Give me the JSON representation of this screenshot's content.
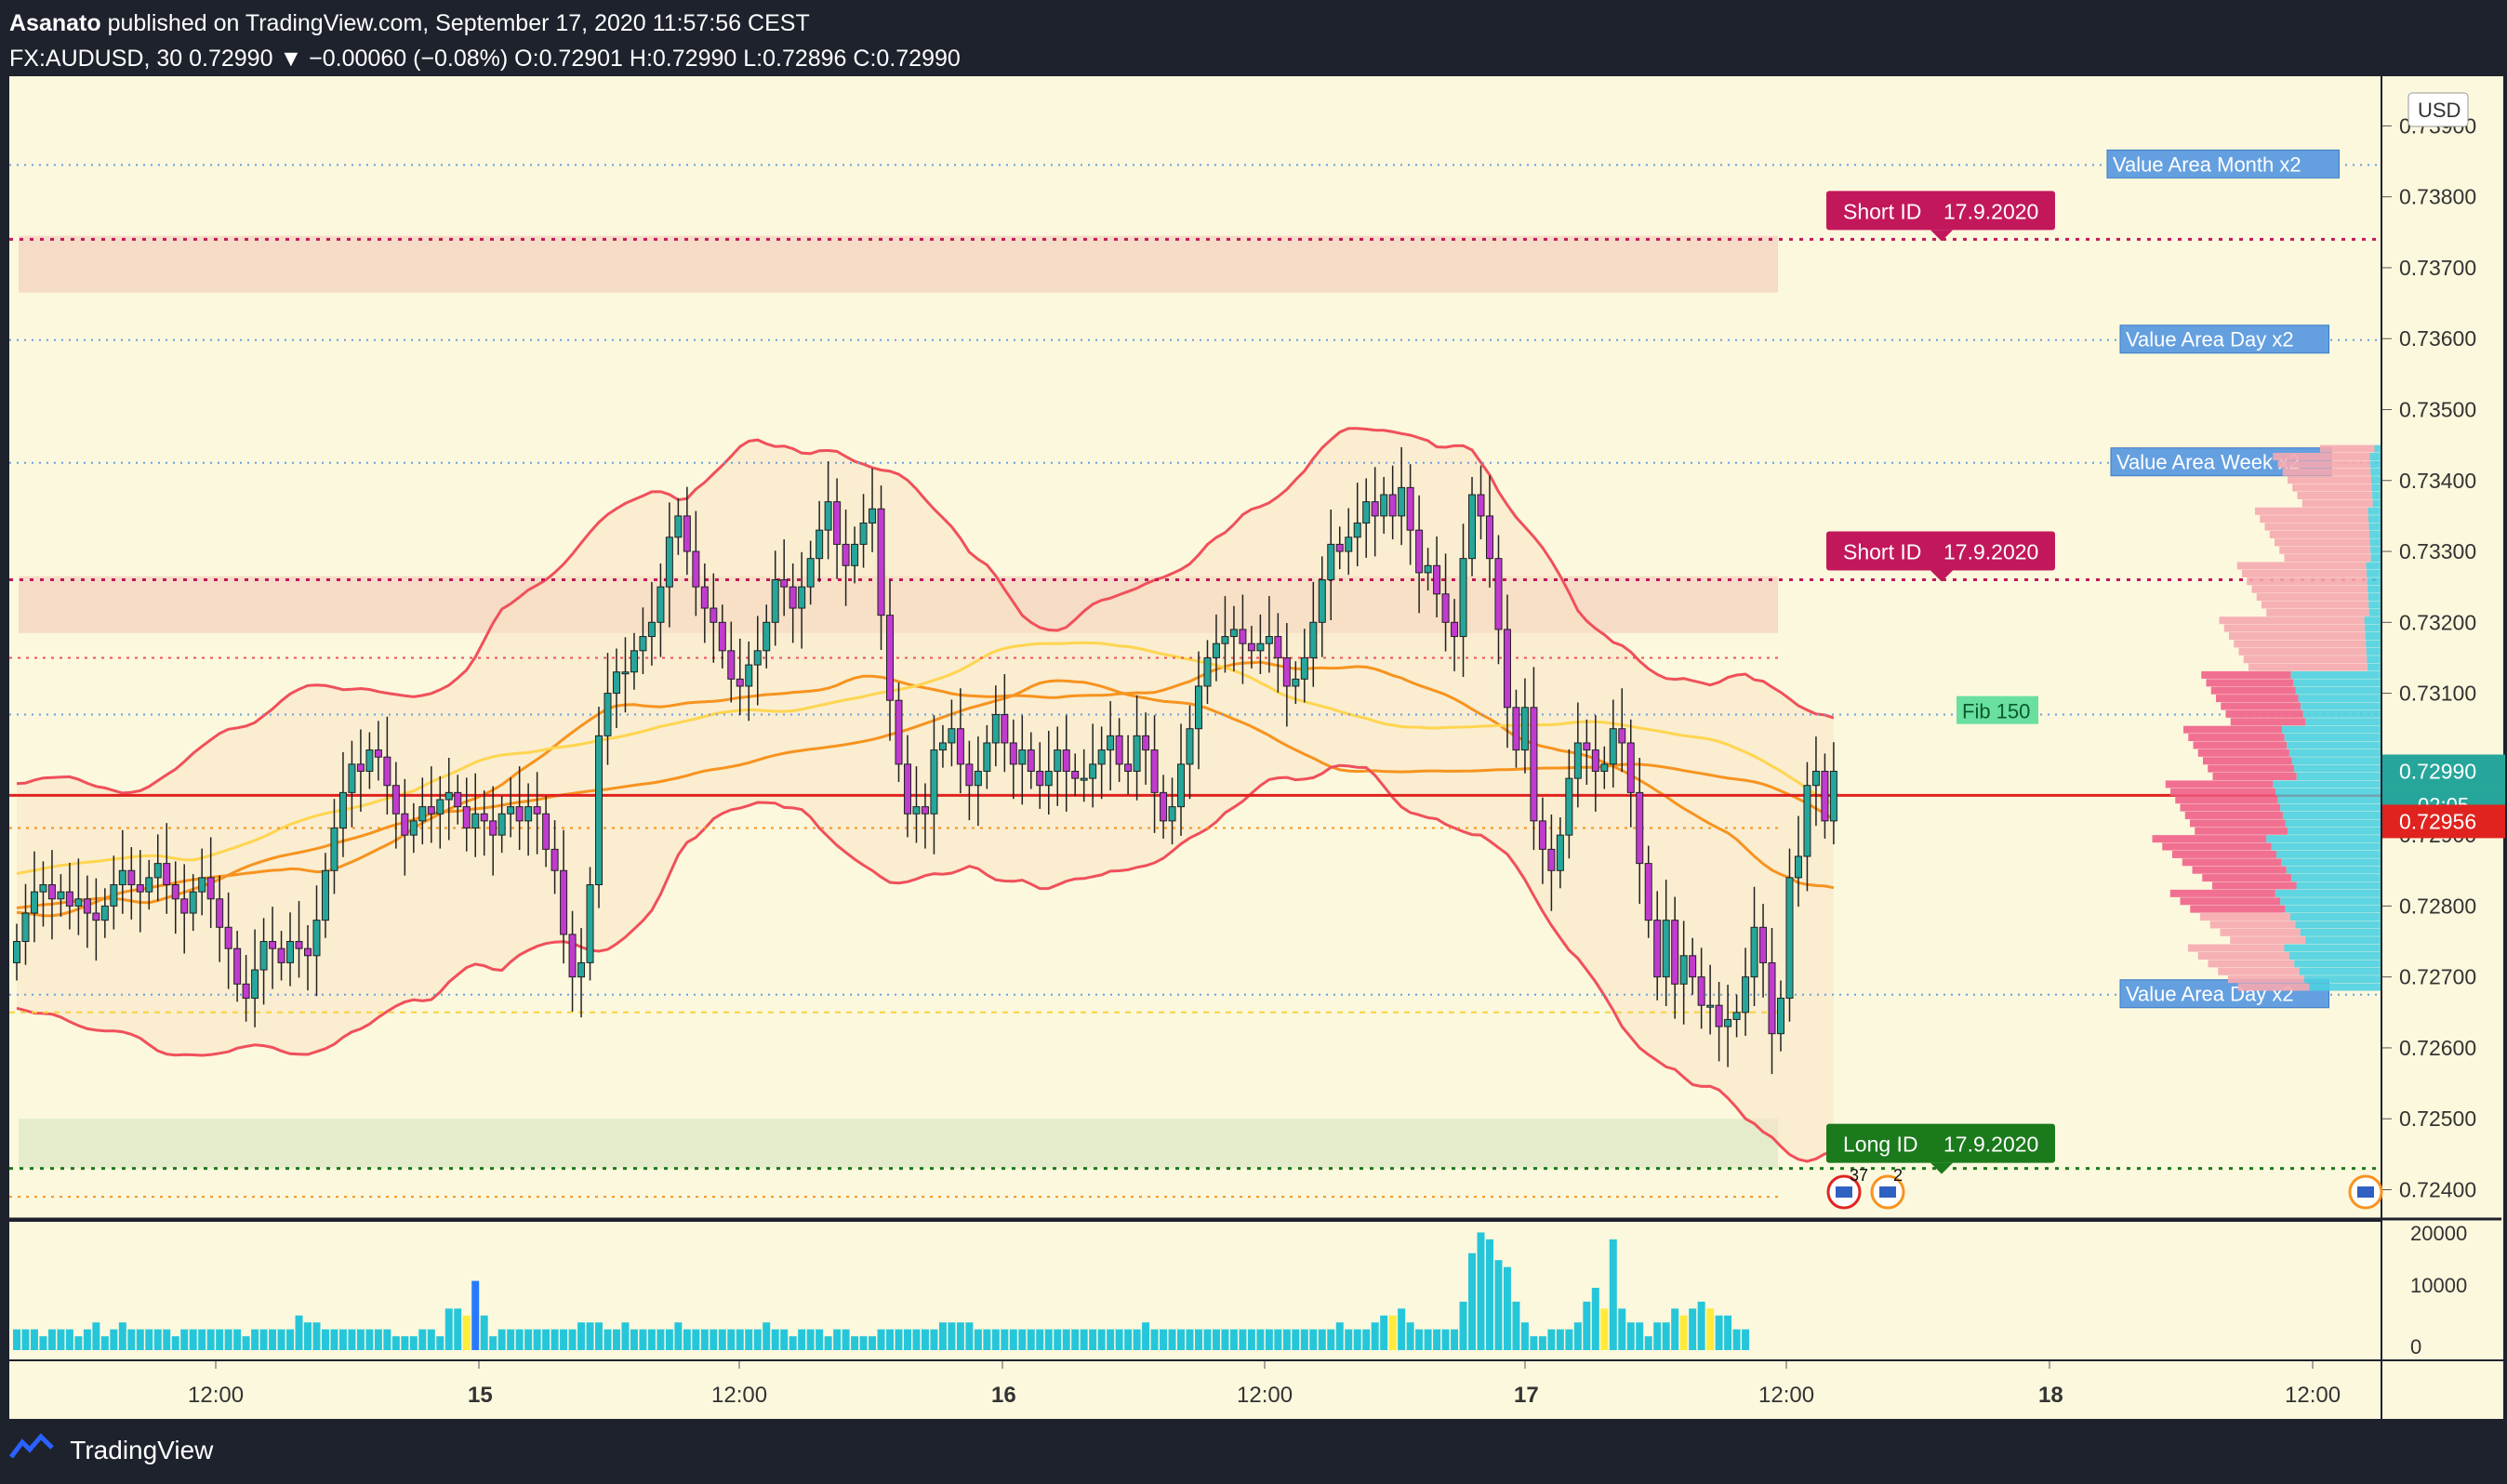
{
  "header": {
    "publisher": "Asanato",
    "published_text": "published on TradingView.com, September 17, 2020 11:57:56 CEST",
    "symbol": "FX:AUDUSD, 30",
    "last": "0.72990",
    "change": "−0.00060 (−0.08%)",
    "o_label": "O:",
    "o": "0.72901",
    "h_label": "H:",
    "h": "0.72990",
    "l_label": "L:",
    "l": "0.72896",
    "c_label": "C:",
    "c": "0.72990"
  },
  "footer": {
    "brand": "TradingView"
  },
  "colors": {
    "bg": "#fcf8dd",
    "frame": "#1e222d",
    "up": "#26a69a",
    "down": "#c2185b",
    "bb": "#f0505a",
    "ema": "#f7931e",
    "ma": "#ffd54f",
    "short": "#c2185b",
    "long": "#1b7a1b",
    "va_label": "#64a0e0",
    "fib": "#69e0a0",
    "price_line": "#e0231f"
  },
  "chart_data": {
    "type": "candlestick",
    "symbol": "FX:AUDUSD",
    "timeframe": "30",
    "currency": "USD",
    "ylim": [
      0.7236,
      0.7397
    ],
    "price_ticks": [
      "0.73900",
      "0.73800",
      "0.73700",
      "0.73600",
      "0.73500",
      "0.73400",
      "0.73300",
      "0.73200",
      "0.73100",
      "0.73000",
      "0.72900",
      "0.72800",
      "0.72700",
      "0.72600",
      "0.72500",
      "0.72400"
    ],
    "time_ticks": [
      "12:00",
      "15",
      "12:00",
      "16",
      "12:00",
      "17",
      "12:00",
      "18",
      "12:00"
    ],
    "volume_ticks": [
      "20000",
      "10000",
      "0"
    ],
    "last_price": "0.72990",
    "countdown": "02:05",
    "marker_price": "0.72956",
    "closes": [
      0.7275,
      0.7279,
      0.7282,
      0.7283,
      0.7281,
      0.7282,
      0.728,
      0.7281,
      0.7279,
      0.7278,
      0.728,
      0.7283,
      0.7285,
      0.7283,
      0.7282,
      0.7284,
      0.7286,
      0.7283,
      0.7281,
      0.7279,
      0.7282,
      0.7284,
      0.7281,
      0.7277,
      0.7274,
      0.7269,
      0.7267,
      0.7271,
      0.7275,
      0.7274,
      0.7272,
      0.7275,
      0.7274,
      0.7273,
      0.7278,
      0.7285,
      0.7291,
      0.7296,
      0.73,
      0.7299,
      0.7302,
      0.7301,
      0.7297,
      0.7293,
      0.729,
      0.7292,
      0.7294,
      0.7293,
      0.7295,
      0.7296,
      0.7294,
      0.7291,
      0.7293,
      0.7292,
      0.729,
      0.7293,
      0.7294,
      0.7292,
      0.7294,
      0.7293,
      0.7288,
      0.7285,
      0.7276,
      0.727,
      0.7272,
      0.7283,
      0.7304,
      0.731,
      0.7313,
      0.7313,
      0.7316,
      0.7318,
      0.732,
      0.7325,
      0.7332,
      0.7335,
      0.733,
      0.7325,
      0.7322,
      0.732,
      0.7316,
      0.7312,
      0.7311,
      0.7314,
      0.7316,
      0.732,
      0.7326,
      0.7325,
      0.7322,
      0.7325,
      0.7329,
      0.7333,
      0.7337,
      0.7331,
      0.7328,
      0.7331,
      0.7334,
      0.7336,
      0.7321,
      0.7309,
      0.73,
      0.7293,
      0.7294,
      0.7293,
      0.7302,
      0.7303,
      0.7305,
      0.73,
      0.7297,
      0.7299,
      0.7303,
      0.7307,
      0.7303,
      0.73,
      0.7302,
      0.7299,
      0.7297,
      0.7299,
      0.7302,
      0.7299,
      0.7298,
      0.7298,
      0.73,
      0.7302,
      0.7304,
      0.73,
      0.7299,
      0.7304,
      0.7302,
      0.7296,
      0.7292,
      0.7294,
      0.73,
      0.7305,
      0.7311,
      0.7315,
      0.7317,
      0.7318,
      0.7319,
      0.7317,
      0.7316,
      0.7317,
      0.7318,
      0.7315,
      0.7311,
      0.7312,
      0.7315,
      0.732,
      0.7326,
      0.7331,
      0.733,
      0.7332,
      0.7334,
      0.7337,
      0.7335,
      0.7338,
      0.7335,
      0.7339,
      0.7333,
      0.7327,
      0.7328,
      0.7324,
      0.732,
      0.7318,
      0.7329,
      0.7338,
      0.7335,
      0.7329,
      0.7319,
      0.7308,
      0.7302,
      0.7308,
      0.7292,
      0.7288,
      0.7285,
      0.729,
      0.7298,
      0.7303,
      0.7302,
      0.7299,
      0.73,
      0.7305,
      0.7303,
      0.7296,
      0.7286,
      0.7278,
      0.727,
      0.7278,
      0.7269,
      0.7273,
      0.727,
      0.7266,
      0.7266,
      0.7263,
      0.7264,
      0.7265,
      0.727,
      0.7277,
      0.7272,
      0.7262,
      0.7267,
      0.7284,
      0.7287,
      0.7297,
      0.7299,
      0.7292,
      0.7299
    ],
    "bollinger": {
      "upper_top": 0.7342,
      "lower_bottom": 0.7256
    },
    "levels": [
      {
        "label": "Short ID",
        "date": "17.9.2020",
        "price": 0.7374
      },
      {
        "label": "Short ID",
        "date": "17.9.2020",
        "price": 0.7326
      },
      {
        "label": "Long ID",
        "date": "17.9.2020",
        "price": 0.7243
      }
    ],
    "zones": [
      {
        "from": 0.73665,
        "to": 0.73745,
        "color": "#f4d2bd"
      },
      {
        "from": 0.73185,
        "to": 0.73265,
        "color": "#f4d2bd"
      },
      {
        "from": 0.7243,
        "to": 0.725,
        "color": "#dde8c4"
      }
    ],
    "value_area_labels": [
      {
        "text": "Value Area Month x2",
        "price": 0.73845
      },
      {
        "text": "Value Area Day x2",
        "price": 0.73598
      },
      {
        "text": "Value Area Week x2",
        "price": 0.73425
      },
      {
        "text": "Value Area Day x2",
        "price": 0.72675
      }
    ],
    "fib_label": {
      "text": "Fib 150",
      "price": 0.73075
    },
    "event_badges": [
      {
        "text": "37"
      },
      {
        "text": "2"
      }
    ],
    "volumes": [
      3,
      3,
      3,
      2,
      3,
      3,
      3,
      2,
      3,
      4,
      2,
      3,
      4,
      3,
      3,
      3,
      3,
      3,
      2,
      3,
      3,
      3,
      3,
      3,
      3,
      3,
      2,
      3,
      3,
      3,
      3,
      3,
      5,
      4,
      4,
      3,
      3,
      3,
      3,
      3,
      3,
      3,
      3,
      2,
      2,
      2,
      3,
      3,
      2,
      6,
      6,
      5,
      10,
      5,
      2,
      3,
      3,
      3,
      3,
      3,
      3,
      3,
      3,
      3,
      4,
      4,
      4,
      3,
      3,
      4,
      3,
      3,
      3,
      3,
      3,
      4,
      3,
      3,
      3,
      3,
      3,
      3,
      3,
      3,
      3,
      4,
      3,
      3,
      2,
      3,
      3,
      3,
      2,
      3,
      3,
      2,
      2,
      2,
      3,
      3,
      3,
      3,
      3,
      3,
      3,
      4,
      4,
      4,
      4,
      3,
      3,
      3,
      3,
      3,
      3,
      3,
      3,
      3,
      3,
      3,
      3,
      3,
      3,
      3,
      3,
      3,
      3,
      3,
      4,
      3,
      3,
      3,
      3,
      3,
      3,
      3,
      3,
      3,
      3,
      3,
      3,
      3,
      3,
      3,
      3,
      3,
      3,
      3,
      3,
      3,
      4,
      3,
      3,
      3,
      4,
      5,
      5,
      6,
      4,
      3,
      3,
      3,
      3,
      3,
      7,
      14,
      17,
      16,
      13,
      12,
      7,
      4,
      2,
      2,
      3,
      3,
      3,
      4,
      7,
      9,
      6,
      16,
      6,
      4,
      4,
      2,
      4,
      4,
      6,
      5,
      6,
      7,
      6,
      5,
      5,
      3,
      3
    ],
    "volume_profile": "buy/sell histogram on right edge"
  }
}
